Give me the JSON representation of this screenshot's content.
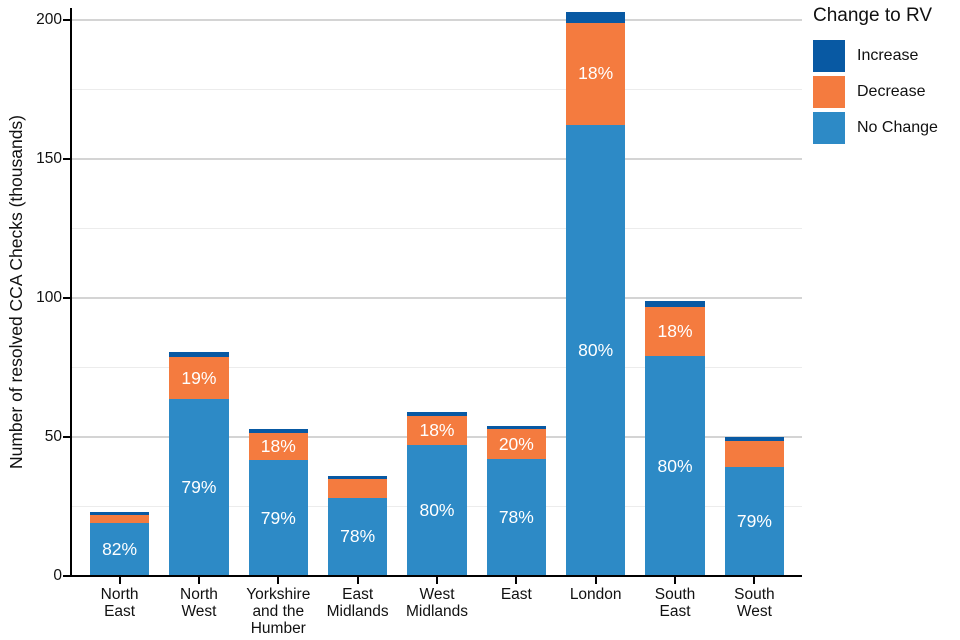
{
  "chart": {
    "ylabel": "Number of resolved CCA Checks (thousands)",
    "legend": {
      "title": "Change to RV",
      "items": [
        {
          "label": "Increase",
          "color": "#0859A3"
        },
        {
          "label": "Decrease",
          "color": "#F47B3F"
        },
        {
          "label": "No Change",
          "color": "#2D8AC6"
        }
      ]
    }
  },
  "chart_data": {
    "type": "bar",
    "stacked": true,
    "title": "",
    "xlabel": "",
    "ylabel": "Number of resolved CCA Checks (thousands)",
    "units": "thousands",
    "ylim": [
      0,
      204
    ],
    "yticks": [
      0,
      50,
      100,
      150,
      200
    ],
    "minor_gridlines": [
      25,
      75,
      125,
      175
    ],
    "grid": "horizontal",
    "legend_title": "Change to RV",
    "legend_position": "top-right",
    "legend_order": [
      "Increase",
      "Decrease",
      "No Change"
    ],
    "categories": [
      "North East",
      "North West",
      "Yorkshire and the Humber",
      "East Midlands",
      "West Midlands",
      "East",
      "London",
      "South East",
      "South West"
    ],
    "tick_label_lines": [
      [
        "North",
        "East"
      ],
      [
        "North",
        "West"
      ],
      [
        "Yorkshire",
        "and the",
        "Humber"
      ],
      [
        "East",
        "Midlands"
      ],
      [
        "West",
        "Midlands"
      ],
      [
        "East"
      ],
      [
        "London"
      ],
      [
        "South",
        "East"
      ],
      [
        "South",
        "West"
      ]
    ],
    "series": [
      {
        "name": "No Change",
        "color": "#2D8AC6",
        "values": [
          18.9,
          63.5,
          41.7,
          28.1,
          47.0,
          42.0,
          162.3,
          79.0,
          39.3
        ],
        "segment_labels": [
          "82%",
          "79%",
          "79%",
          "78%",
          "80%",
          "78%",
          "80%",
          "80%",
          "79%"
        ]
      },
      {
        "name": "Decrease",
        "color": "#F47B3F",
        "values": [
          2.9,
          15.3,
          9.6,
          6.9,
          10.6,
          10.7,
          36.6,
          17.7,
          9.2
        ],
        "segment_labels": [
          null,
          "19%",
          "18%",
          null,
          "18%",
          "20%",
          "18%",
          "18%",
          null
        ]
      },
      {
        "name": "Increase",
        "color": "#0859A3",
        "values": [
          1.2,
          1.8,
          1.5,
          1.1,
          1.3,
          1.2,
          3.9,
          2.1,
          1.4
        ],
        "segment_labels": [
          null,
          null,
          null,
          null,
          null,
          null,
          null,
          null,
          null
        ]
      }
    ],
    "totals": [
      23.0,
      80.6,
      52.8,
      36.1,
      58.9,
      53.9,
      202.8,
      98.8,
      49.9
    ]
  },
  "colors": {
    "background": "#FFFFFF",
    "axis": "#000000",
    "major_grid": "#D4D4D4",
    "minor_grid": "#ECECEC",
    "text": "#1A1A1A",
    "bar_label_text": "#FFFFFF"
  }
}
